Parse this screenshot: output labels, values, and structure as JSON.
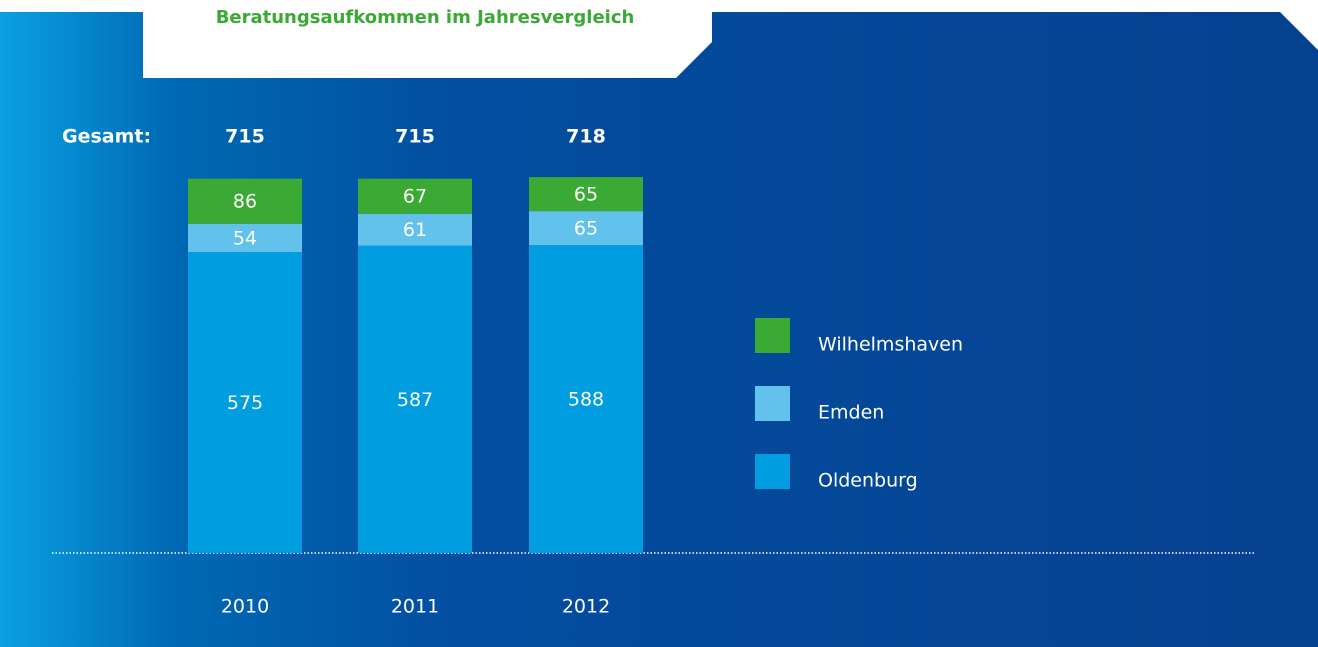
{
  "chart_data": {
    "type": "stacked-bar",
    "title": "Beratungsaufkommen im Jahresvergleich",
    "total_label": "Gesamt:",
    "categories": [
      "2010",
      "2011",
      "2012"
    ],
    "totals": [
      715,
      715,
      718
    ],
    "series": [
      {
        "name": "Oldenburg",
        "color": "#009de0",
        "values": [
          575,
          587,
          588
        ]
      },
      {
        "name": "Emden",
        "color": "#62c2ec",
        "values": [
          54,
          61,
          65
        ]
      },
      {
        "name": "Wilhelmshaven",
        "color": "#3aaa35",
        "values": [
          86,
          67,
          65
        ]
      }
    ]
  }
}
